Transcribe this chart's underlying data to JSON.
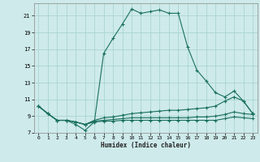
{
  "xlabel": "Humidex (Indice chaleur)",
  "bg_color": "#ceeaea",
  "grid_color": "#aad4d4",
  "line_color": "#1a7060",
  "xlim": [
    -0.5,
    23.5
  ],
  "ylim": [
    7,
    22.5
  ],
  "yticks": [
    7,
    9,
    11,
    13,
    15,
    17,
    19,
    21
  ],
  "xticks": [
    0,
    1,
    2,
    3,
    4,
    5,
    6,
    7,
    8,
    9,
    10,
    11,
    12,
    13,
    14,
    15,
    16,
    17,
    18,
    19,
    20,
    21,
    22,
    23
  ],
  "main_x": [
    0,
    1,
    2,
    3,
    4,
    5,
    6,
    7,
    8,
    9,
    10,
    11,
    12,
    13,
    14,
    15,
    16,
    17,
    18,
    19,
    20,
    21,
    22,
    23
  ],
  "main_y": [
    10.2,
    9.3,
    8.5,
    8.5,
    8.0,
    7.3,
    8.3,
    16.5,
    18.3,
    20.0,
    21.8,
    21.3,
    21.5,
    21.7,
    21.3,
    21.3,
    17.3,
    14.5,
    13.2,
    11.8,
    11.3,
    12.0,
    10.8,
    9.3
  ],
  "line2_x": [
    0,
    1,
    2,
    3,
    4,
    5,
    6,
    7,
    8,
    9,
    10,
    11,
    12,
    13,
    14,
    15,
    16,
    17,
    18,
    19,
    20,
    21,
    22,
    23
  ],
  "line2_y": [
    10.2,
    9.3,
    8.5,
    8.5,
    8.3,
    8.0,
    8.5,
    8.8,
    8.9,
    9.1,
    9.3,
    9.4,
    9.5,
    9.6,
    9.7,
    9.7,
    9.8,
    9.9,
    10.0,
    10.2,
    10.8,
    11.3,
    10.8,
    9.3
  ],
  "line3_x": [
    0,
    1,
    2,
    3,
    4,
    5,
    6,
    7,
    8,
    9,
    10,
    11,
    12,
    13,
    14,
    15,
    16,
    17,
    18,
    19,
    20,
    21,
    22,
    23
  ],
  "line3_y": [
    10.2,
    9.3,
    8.5,
    8.5,
    8.3,
    8.0,
    8.4,
    8.5,
    8.6,
    8.7,
    8.8,
    8.8,
    8.8,
    8.8,
    8.8,
    8.8,
    8.8,
    8.9,
    8.9,
    9.0,
    9.2,
    9.5,
    9.3,
    9.2
  ],
  "line4_x": [
    0,
    1,
    2,
    3,
    4,
    5,
    6,
    7,
    8,
    9,
    10,
    11,
    12,
    13,
    14,
    15,
    16,
    17,
    18,
    19,
    20,
    21,
    22,
    23
  ],
  "line4_y": [
    10.2,
    9.3,
    8.5,
    8.5,
    8.3,
    8.0,
    8.3,
    8.4,
    8.4,
    8.5,
    8.5,
    8.5,
    8.5,
    8.5,
    8.5,
    8.5,
    8.5,
    8.5,
    8.5,
    8.5,
    8.7,
    8.9,
    8.8,
    8.7
  ]
}
